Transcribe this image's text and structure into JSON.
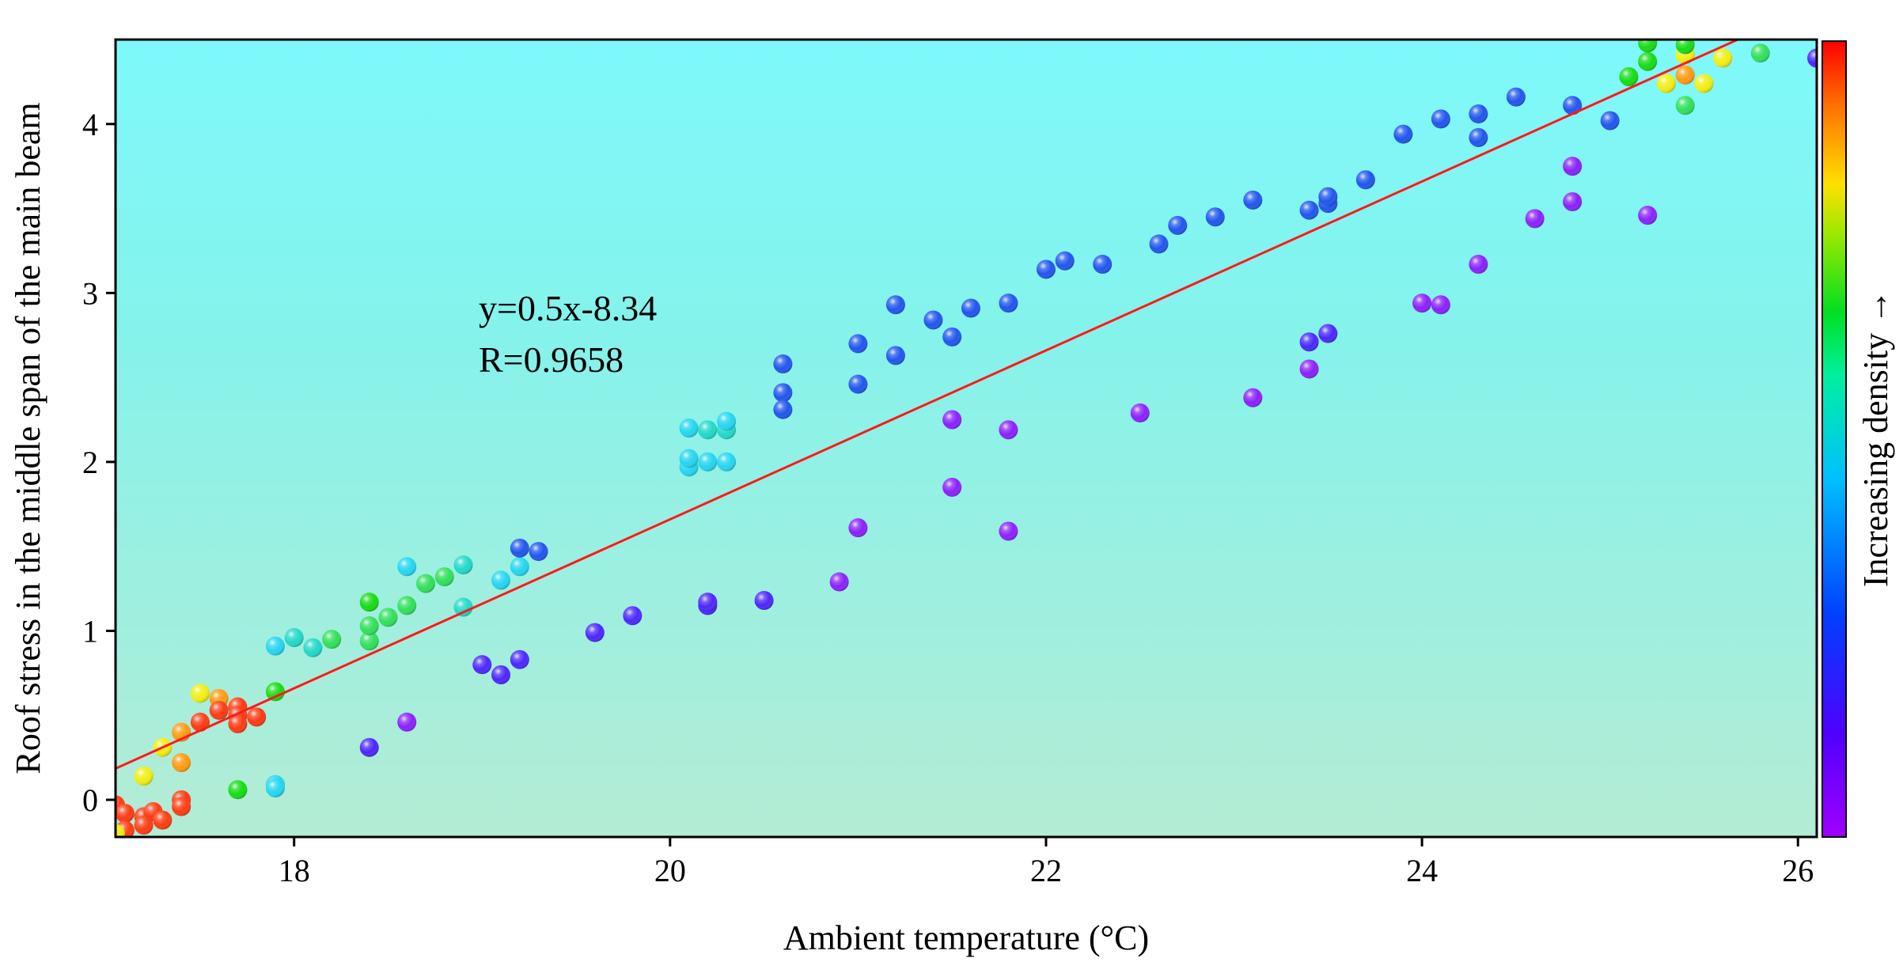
{
  "chart_data": {
    "type": "scatter",
    "title": "",
    "xlabel": "Ambient temperature (°C)",
    "ylabel": "Roof stress in the middle span of the main beam",
    "xlim": [
      17.05,
      26.1
    ],
    "ylim": [
      -0.22,
      4.5
    ],
    "xticks": [
      "18",
      "20",
      "22",
      "24",
      "26"
    ],
    "yticks": [
      "0",
      "1",
      "2",
      "3",
      "4"
    ],
    "grid": false,
    "fit": {
      "label": "y=0.5x-8.34",
      "r_label": "R=0.9658",
      "slope": 0.5,
      "intercept": -8.34
    },
    "colorbar": {
      "label": "Increasing density →",
      "colors": [
        "#8b00ff",
        "#4b00ff",
        "#0050ff",
        "#00c8ff",
        "#00ff70",
        "#00e000",
        "#ffe000",
        "#ff8000",
        "#ff0000"
      ]
    },
    "density_palette": [
      "#8a1fff",
      "#4a26ff",
      "#1f55ee",
      "#22d6f0",
      "#1fd9c8",
      "#2fe05a",
      "#14dc14",
      "#f0ee10",
      "#ff9a10",
      "#ff3a10"
    ],
    "points": [
      {
        "x": 17.05,
        "y": -0.03,
        "d": 9
      },
      {
        "x": 17.1,
        "y": -0.08,
        "d": 9
      },
      {
        "x": 17.1,
        "y": -0.18,
        "d": 9
      },
      {
        "x": 17.2,
        "y": -0.1,
        "d": 9
      },
      {
        "x": 17.2,
        "y": -0.15,
        "d": 9
      },
      {
        "x": 17.25,
        "y": -0.07,
        "d": 9
      },
      {
        "x": 17.3,
        "y": -0.12,
        "d": 9
      },
      {
        "x": 17.4,
        "y": 0.0,
        "d": 9
      },
      {
        "x": 17.4,
        "y": -0.04,
        "d": 9
      },
      {
        "x": 17.05,
        "y": -0.2,
        "d": 7
      },
      {
        "x": 17.2,
        "y": 0.14,
        "d": 7
      },
      {
        "x": 17.3,
        "y": 0.31,
        "d": 7
      },
      {
        "x": 17.4,
        "y": 0.22,
        "d": 8
      },
      {
        "x": 17.4,
        "y": 0.4,
        "d": 8
      },
      {
        "x": 17.5,
        "y": 0.63,
        "d": 7
      },
      {
        "x": 17.5,
        "y": 0.46,
        "d": 9
      },
      {
        "x": 17.6,
        "y": 0.6,
        "d": 8
      },
      {
        "x": 17.6,
        "y": 0.53,
        "d": 9
      },
      {
        "x": 17.7,
        "y": 0.55,
        "d": 9
      },
      {
        "x": 17.7,
        "y": 0.5,
        "d": 9
      },
      {
        "x": 17.7,
        "y": 0.45,
        "d": 9
      },
      {
        "x": 17.8,
        "y": 0.49,
        "d": 9
      },
      {
        "x": 17.7,
        "y": 0.06,
        "d": 6
      },
      {
        "x": 17.9,
        "y": 0.09,
        "d": 3
      },
      {
        "x": 17.9,
        "y": 0.07,
        "d": 3
      },
      {
        "x": 17.9,
        "y": 0.64,
        "d": 6
      },
      {
        "x": 17.9,
        "y": 0.91,
        "d": 3
      },
      {
        "x": 18.0,
        "y": 0.96,
        "d": 4
      },
      {
        "x": 18.1,
        "y": 0.9,
        "d": 4
      },
      {
        "x": 18.2,
        "y": 0.95,
        "d": 5
      },
      {
        "x": 18.4,
        "y": 0.94,
        "d": 5
      },
      {
        "x": 18.4,
        "y": 1.03,
        "d": 5
      },
      {
        "x": 18.4,
        "y": 1.17,
        "d": 6
      },
      {
        "x": 18.5,
        "y": 1.08,
        "d": 5
      },
      {
        "x": 18.6,
        "y": 1.15,
        "d": 5
      },
      {
        "x": 18.6,
        "y": 1.38,
        "d": 3
      },
      {
        "x": 18.7,
        "y": 1.28,
        "d": 5
      },
      {
        "x": 18.8,
        "y": 1.32,
        "d": 5
      },
      {
        "x": 18.9,
        "y": 1.14,
        "d": 4
      },
      {
        "x": 18.9,
        "y": 1.39,
        "d": 4
      },
      {
        "x": 19.1,
        "y": 1.3,
        "d": 3
      },
      {
        "x": 19.2,
        "y": 1.38,
        "d": 3
      },
      {
        "x": 19.2,
        "y": 1.49,
        "d": 2
      },
      {
        "x": 19.3,
        "y": 1.47,
        "d": 2
      },
      {
        "x": 18.4,
        "y": 0.31,
        "d": 1
      },
      {
        "x": 18.6,
        "y": 0.46,
        "d": 0
      },
      {
        "x": 19.0,
        "y": 0.8,
        "d": 1
      },
      {
        "x": 19.1,
        "y": 0.74,
        "d": 1
      },
      {
        "x": 19.2,
        "y": 0.83,
        "d": 1
      },
      {
        "x": 19.6,
        "y": 0.99,
        "d": 1
      },
      {
        "x": 19.8,
        "y": 1.09,
        "d": 1
      },
      {
        "x": 20.2,
        "y": 1.15,
        "d": 1
      },
      {
        "x": 20.2,
        "y": 1.17,
        "d": 1
      },
      {
        "x": 20.5,
        "y": 1.18,
        "d": 1
      },
      {
        "x": 20.1,
        "y": 1.97,
        "d": 3
      },
      {
        "x": 20.1,
        "y": 2.02,
        "d": 3
      },
      {
        "x": 20.1,
        "y": 2.2,
        "d": 3
      },
      {
        "x": 20.2,
        "y": 2.0,
        "d": 3
      },
      {
        "x": 20.2,
        "y": 2.19,
        "d": 4
      },
      {
        "x": 20.3,
        "y": 2.0,
        "d": 3
      },
      {
        "x": 20.3,
        "y": 2.19,
        "d": 4
      },
      {
        "x": 20.3,
        "y": 2.24,
        "d": 3
      },
      {
        "x": 20.6,
        "y": 2.58,
        "d": 2
      },
      {
        "x": 20.6,
        "y": 2.41,
        "d": 2
      },
      {
        "x": 20.6,
        "y": 2.31,
        "d": 2
      },
      {
        "x": 21.0,
        "y": 2.46,
        "d": 2
      },
      {
        "x": 21.0,
        "y": 2.7,
        "d": 2
      },
      {
        "x": 21.2,
        "y": 2.63,
        "d": 2
      },
      {
        "x": 21.2,
        "y": 2.93,
        "d": 2
      },
      {
        "x": 21.4,
        "y": 2.84,
        "d": 2
      },
      {
        "x": 21.5,
        "y": 2.74,
        "d": 2
      },
      {
        "x": 21.6,
        "y": 2.91,
        "d": 2
      },
      {
        "x": 21.8,
        "y": 2.94,
        "d": 2
      },
      {
        "x": 22.0,
        "y": 3.14,
        "d": 2
      },
      {
        "x": 22.1,
        "y": 3.19,
        "d": 2
      },
      {
        "x": 22.3,
        "y": 3.17,
        "d": 2
      },
      {
        "x": 22.6,
        "y": 3.29,
        "d": 2
      },
      {
        "x": 22.7,
        "y": 3.4,
        "d": 2
      },
      {
        "x": 22.9,
        "y": 3.45,
        "d": 2
      },
      {
        "x": 23.1,
        "y": 3.55,
        "d": 2
      },
      {
        "x": 23.4,
        "y": 3.49,
        "d": 2
      },
      {
        "x": 23.5,
        "y": 3.53,
        "d": 2
      },
      {
        "x": 23.5,
        "y": 3.57,
        "d": 2
      },
      {
        "x": 23.7,
        "y": 3.67,
        "d": 2
      },
      {
        "x": 23.9,
        "y": 3.94,
        "d": 2
      },
      {
        "x": 24.1,
        "y": 4.03,
        "d": 2
      },
      {
        "x": 24.3,
        "y": 3.92,
        "d": 2
      },
      {
        "x": 24.3,
        "y": 4.06,
        "d": 2
      },
      {
        "x": 24.5,
        "y": 4.16,
        "d": 2
      },
      {
        "x": 24.8,
        "y": 4.11,
        "d": 2
      },
      {
        "x": 25.0,
        "y": 4.02,
        "d": 2
      },
      {
        "x": 26.1,
        "y": 4.39,
        "d": 1
      },
      {
        "x": 20.9,
        "y": 1.29,
        "d": 0
      },
      {
        "x": 21.0,
        "y": 1.61,
        "d": 0
      },
      {
        "x": 21.5,
        "y": 1.85,
        "d": 0
      },
      {
        "x": 21.5,
        "y": 2.25,
        "d": 0
      },
      {
        "x": 21.8,
        "y": 1.59,
        "d": 0
      },
      {
        "x": 21.8,
        "y": 2.19,
        "d": 0
      },
      {
        "x": 22.5,
        "y": 2.29,
        "d": 0
      },
      {
        "x": 23.1,
        "y": 2.38,
        "d": 0
      },
      {
        "x": 23.4,
        "y": 2.55,
        "d": 0
      },
      {
        "x": 23.4,
        "y": 2.71,
        "d": 1
      },
      {
        "x": 23.5,
        "y": 2.76,
        "d": 1
      },
      {
        "x": 24.0,
        "y": 2.94,
        "d": 0
      },
      {
        "x": 24.1,
        "y": 2.93,
        "d": 0
      },
      {
        "x": 24.3,
        "y": 3.17,
        "d": 0
      },
      {
        "x": 24.6,
        "y": 3.44,
        "d": 0
      },
      {
        "x": 24.8,
        "y": 3.54,
        "d": 0
      },
      {
        "x": 24.8,
        "y": 3.75,
        "d": 0
      },
      {
        "x": 25.2,
        "y": 3.46,
        "d": 0
      },
      {
        "x": 25.1,
        "y": 4.28,
        "d": 6
      },
      {
        "x": 25.2,
        "y": 4.37,
        "d": 6
      },
      {
        "x": 25.2,
        "y": 4.48,
        "d": 6
      },
      {
        "x": 25.3,
        "y": 4.24,
        "d": 7
      },
      {
        "x": 25.4,
        "y": 4.29,
        "d": 8
      },
      {
        "x": 25.4,
        "y": 4.41,
        "d": 7
      },
      {
        "x": 25.4,
        "y": 4.47,
        "d": 6
      },
      {
        "x": 25.4,
        "y": 4.11,
        "d": 5
      },
      {
        "x": 25.5,
        "y": 4.24,
        "d": 7
      },
      {
        "x": 25.6,
        "y": 4.39,
        "d": 7
      },
      {
        "x": 25.8,
        "y": 4.42,
        "d": 5
      }
    ]
  }
}
